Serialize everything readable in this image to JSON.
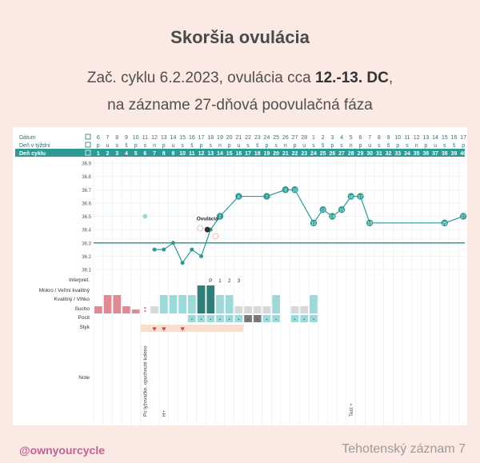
{
  "title": "Skoršia ovulácia",
  "subtitle": {
    "line1_prefix": "Zač. cyklu 6.2.2023, ovulácia cca ",
    "line1_bold": "12.-13. DC",
    "line1_suffix": ",",
    "line2": "na zázname 27-dňová poovulačná fáza"
  },
  "footer": {
    "handle": "@ownyourcycle",
    "record": "Tehotenský záznam 7"
  },
  "colors": {
    "teal": "#2e9a93",
    "light_teal": "#9dd9d8",
    "pink": "#e08a95",
    "grey": "#d8d8d8",
    "dark_teal": "#2e7f79",
    "beige": "#f6dfcf",
    "heart": "#d9455a"
  },
  "chart_data": {
    "type": "line",
    "row_labels": {
      "date": "Dátum",
      "weekday": "Deň v týždni",
      "cycle_day": "Deň cyklu",
      "interpret": "Interpret.",
      "mokro": "Mokro / Veľmi kvalitný",
      "kvalitny": "Kvalitný / Vlhko",
      "sucho": "Sucho",
      "pocit": "Pocit",
      "styk": "Styk",
      "note": "Note"
    },
    "dates": [
      "6",
      "7",
      "8",
      "9",
      "10",
      "11",
      "12",
      "13",
      "14",
      "15",
      "16",
      "17",
      "18",
      "19",
      "20",
      "21",
      "22",
      "23",
      "24",
      "25",
      "26",
      "27",
      "28",
      "1",
      "2",
      "3",
      "4",
      "5",
      "6",
      "7",
      "8",
      "9",
      "10",
      "11",
      "12",
      "13",
      "14",
      "15",
      "16",
      "17"
    ],
    "weekdays": [
      "p",
      "u",
      "s",
      "š",
      "p",
      "s",
      "n",
      "p",
      "u",
      "s",
      "š",
      "p",
      "s",
      "n",
      "p",
      "u",
      "s",
      "š",
      "p",
      "s",
      "n",
      "p",
      "u",
      "s",
      "š",
      "p",
      "s",
      "n",
      "p",
      "u",
      "s",
      "š",
      "p",
      "s",
      "n",
      "p",
      "u",
      "s",
      "š",
      "p"
    ],
    "cycle_days": [
      "1",
      "2",
      "3",
      "4",
      "5",
      "6",
      "7",
      "8",
      "9",
      "10",
      "11",
      "12",
      "13",
      "14",
      "15",
      "16",
      "17",
      "18",
      "19",
      "20",
      "21",
      "22",
      "23",
      "24",
      "25",
      "26",
      "27",
      "28",
      "29",
      "30",
      "31",
      "32",
      "33",
      "34",
      "35",
      "36",
      "37",
      "38",
      "39",
      "40"
    ],
    "y_ticks": [
      "36.9",
      "36.8",
      "36.7",
      "36.6",
      "36.5",
      "36.4",
      "36.3",
      "36.2",
      "36.1"
    ],
    "ylim": [
      36.1,
      36.9
    ],
    "coverline": 36.3,
    "temperatures": [
      {
        "day": 6,
        "value": 36.5,
        "excluded": true
      },
      {
        "day": 7,
        "value": 36.25
      },
      {
        "day": 8,
        "value": 36.25
      },
      {
        "day": 9,
        "value": 36.3
      },
      {
        "day": 10,
        "value": 36.15
      },
      {
        "day": 11,
        "value": 36.25
      },
      {
        "day": 12,
        "value": 36.2
      },
      {
        "day": 13,
        "value": 36.4
      },
      {
        "day": 14,
        "value": 36.5,
        "label": "2"
      },
      {
        "day": 16,
        "value": 36.65,
        "label": "6"
      },
      {
        "day": 19,
        "value": 36.65,
        "label": "7"
      },
      {
        "day": 21,
        "value": 36.7,
        "label": "9"
      },
      {
        "day": 22,
        "value": 36.7,
        "label": "10"
      },
      {
        "day": 24,
        "value": 36.45,
        "label": "12"
      },
      {
        "day": 25,
        "value": 36.55,
        "label": "13"
      },
      {
        "day": 26,
        "value": 36.5,
        "label": "14"
      },
      {
        "day": 27,
        "value": 36.55,
        "label": "15"
      },
      {
        "day": 28,
        "value": 36.65,
        "label": "16"
      },
      {
        "day": 29,
        "value": 36.65,
        "label": "17"
      },
      {
        "day": 30,
        "value": 36.45,
        "label": "18"
      },
      {
        "day": 38,
        "value": 36.45,
        "label": "25"
      },
      {
        "day": 40,
        "value": 36.5,
        "label": "27"
      }
    ],
    "ovulation_label": "Ovulácia",
    "ovulation_day": 13,
    "interpret_marks": [
      {
        "day": 13,
        "text": "P"
      },
      {
        "day": 14,
        "text": "1"
      },
      {
        "day": 15,
        "text": "2"
      },
      {
        "day": 16,
        "text": "3"
      }
    ],
    "mucus": [
      {
        "day": 1,
        "level": "sucho",
        "color": "pink"
      },
      {
        "day": 2,
        "level": "kvalitny",
        "color": "pink"
      },
      {
        "day": 3,
        "level": "kvalitny",
        "color": "pink"
      },
      {
        "day": 4,
        "level": "sucho",
        "color": "pink"
      },
      {
        "day": 5,
        "level": "sucho_low",
        "color": "pink"
      },
      {
        "day": 6,
        "level": "dots",
        "color": "pink"
      },
      {
        "day": 7,
        "level": "sucho",
        "color": "grey"
      },
      {
        "day": 8,
        "level": "kvalitny",
        "color": "light_teal"
      },
      {
        "day": 9,
        "level": "kvalitny",
        "color": "light_teal"
      },
      {
        "day": 10,
        "level": "kvalitny",
        "color": "light_teal"
      },
      {
        "day": 11,
        "level": "kvalitny",
        "color": "light_teal"
      },
      {
        "day": 12,
        "level": "mokro",
        "color": "dark_teal"
      },
      {
        "day": 13,
        "level": "mokro",
        "color": "dark_teal"
      },
      {
        "day": 14,
        "level": "kvalitny",
        "color": "light_teal"
      },
      {
        "day": 15,
        "level": "kvalitny",
        "color": "light_teal"
      },
      {
        "day": 16,
        "level": "sucho",
        "color": "grey"
      },
      {
        "day": 17,
        "level": "sucho",
        "color": "grey"
      },
      {
        "day": 18,
        "level": "sucho",
        "color": "grey"
      },
      {
        "day": 19,
        "level": "sucho",
        "color": "grey"
      },
      {
        "day": 20,
        "level": "kvalitny",
        "color": "light_teal"
      },
      {
        "day": 22,
        "level": "sucho",
        "color": "grey"
      },
      {
        "day": 23,
        "level": "sucho",
        "color": "grey"
      },
      {
        "day": 24,
        "level": "kvalitny",
        "color": "light_teal"
      }
    ],
    "pocit_days": [
      11,
      12,
      13,
      14,
      15,
      16,
      17,
      18,
      19,
      20,
      22,
      23,
      24
    ],
    "pocit_grey_days": [
      17,
      18
    ],
    "styk": {
      "band_start": 6,
      "band_end": 16,
      "hearts": [
        7,
        8,
        10
      ]
    },
    "notes": [
      {
        "day": 6,
        "text": "Po lyžovačke, opuchnuté koleno"
      },
      {
        "day": 8,
        "text": "H+"
      },
      {
        "day": 28,
        "text": "Test +"
      }
    ]
  }
}
